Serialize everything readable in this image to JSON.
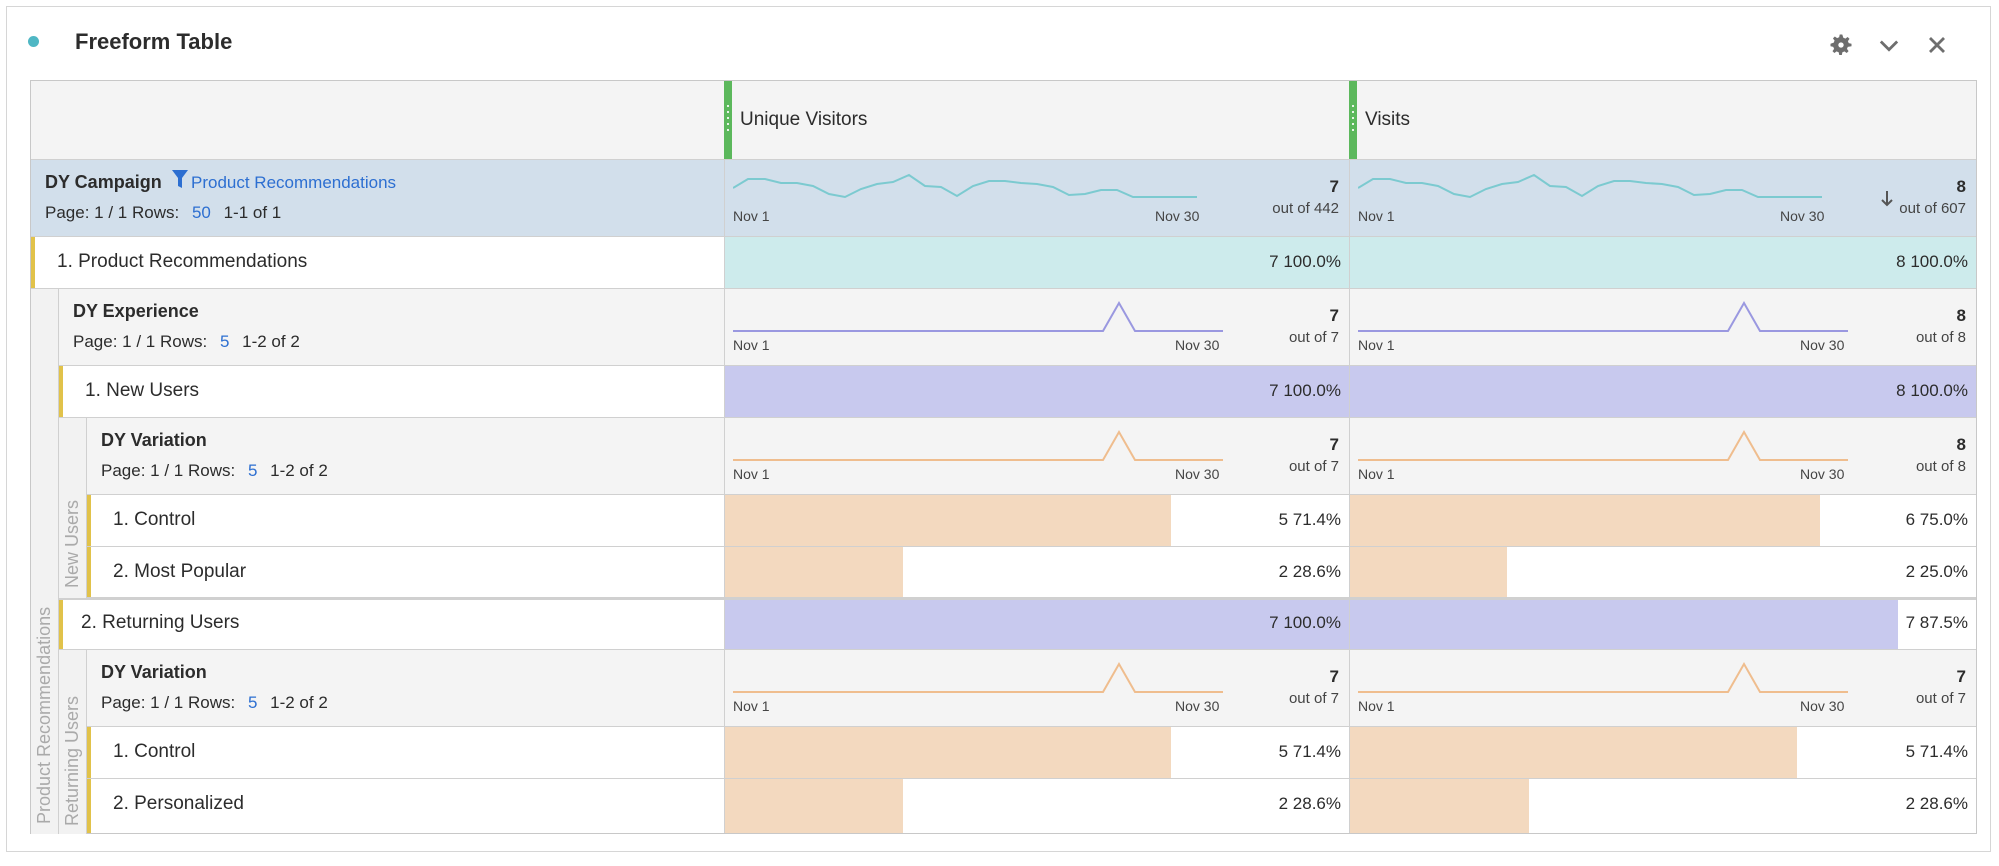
{
  "panel": {
    "title": "Freeform Table",
    "icons": [
      "gear-icon",
      "chevron-down-icon",
      "close-icon"
    ]
  },
  "columns": [
    {
      "label": "Unique Visitors"
    },
    {
      "label": "Visits"
    }
  ],
  "campaign": {
    "dimension": "DY Campaign",
    "filter": "Product Recommendations",
    "page": "Page: 1 / 1",
    "rows_label": "Rows:",
    "rows_value": "50",
    "range": "1-1 of 1",
    "uv": {
      "total": "7",
      "out_of": "out of 442",
      "start": "Nov 1",
      "end": "Nov 30"
    },
    "visits": {
      "total": "8",
      "out_of": "out of 607",
      "start": "Nov 1",
      "end": "Nov 30"
    }
  },
  "product_row": {
    "label": "1. Product Recommendations",
    "uv": "7",
    "uv_pct": "100.0%",
    "visits": "8",
    "visits_pct": "100.0%",
    "uv_fill": 1.0,
    "visits_fill": 1.0
  },
  "experience": {
    "dimension": "DY Experience",
    "page": "Page: 1 / 1",
    "rows_label": "Rows:",
    "rows_value": "5",
    "range": "1-2 of 2",
    "uv": {
      "total": "7",
      "out_of": "out of 7",
      "start": "Nov 1",
      "end": "Nov 30"
    },
    "visits": {
      "total": "8",
      "out_of": "out of 8",
      "start": "Nov 1",
      "end": "Nov 30"
    }
  },
  "new_users": {
    "label": "1. New Users",
    "uv": "7",
    "uv_pct": "100.0%",
    "visits": "8",
    "visits_pct": "100.0%",
    "uv_fill": 1.0,
    "visits_fill": 1.0
  },
  "variation_new": {
    "dimension": "DY Variation",
    "page": "Page: 1 / 1",
    "rows_label": "Rows:",
    "rows_value": "5",
    "range": "1-2 of 2",
    "uv": {
      "total": "7",
      "out_of": "out of 7",
      "start": "Nov 1",
      "end": "Nov 30"
    },
    "visits": {
      "total": "8",
      "out_of": "out of 8",
      "start": "Nov 1",
      "end": "Nov 30"
    }
  },
  "new_control": {
    "label": "1. Control",
    "uv": "5",
    "uv_pct": "71.4%",
    "visits": "6",
    "visits_pct": "75.0%",
    "uv_fill": 0.714,
    "visits_fill": 0.75
  },
  "new_popular": {
    "label": "2. Most Popular",
    "uv": "2",
    "uv_pct": "28.6%",
    "visits": "2",
    "visits_pct": "25.0%",
    "uv_fill": 0.286,
    "visits_fill": 0.25
  },
  "returning_users": {
    "label": "2. Returning Users",
    "uv": "7",
    "uv_pct": "100.0%",
    "visits": "7",
    "visits_pct": "87.5%",
    "uv_fill": 1.0,
    "visits_fill": 0.875
  },
  "variation_ret": {
    "dimension": "DY Variation",
    "page": "Page: 1 / 1",
    "rows_label": "Rows:",
    "rows_value": "5",
    "range": "1-2 of 2",
    "uv": {
      "total": "7",
      "out_of": "out of 7",
      "start": "Nov 1",
      "end": "Nov 30"
    },
    "visits": {
      "total": "7",
      "out_of": "out of 7",
      "start": "Nov 1",
      "end": "Nov 30"
    }
  },
  "ret_control": {
    "label": "1. Control",
    "uv": "5",
    "uv_pct": "71.4%",
    "visits": "5",
    "visits_pct": "71.4%",
    "uv_fill": 0.714,
    "visits_fill": 0.714
  },
  "ret_personalized": {
    "label": "2. Personalized",
    "uv": "2",
    "uv_pct": "28.6%",
    "visits": "2",
    "visits_pct": "28.6%",
    "uv_fill": 0.286,
    "visits_fill": 0.286
  },
  "vertical_labels": {
    "outer": "Product Recommendations",
    "new": "New Users",
    "returning": "Returning Users"
  },
  "colors": {
    "teal_fill": "#cdebec",
    "purple_fill": "#c8c9ee",
    "orange_fill": "#f3d9bf",
    "campaign_bg": "#d2dfeb",
    "teal_line": "#7ccad0",
    "purple_line": "#9a98e0",
    "orange_line": "#efbd8e"
  }
}
